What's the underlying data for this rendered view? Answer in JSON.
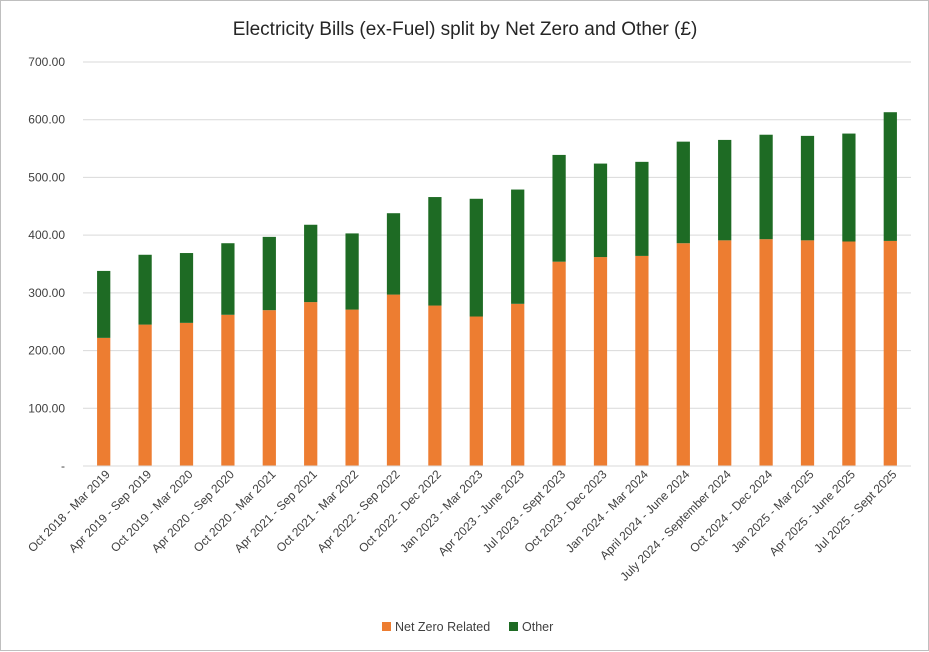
{
  "chart_data": {
    "type": "bar",
    "stacked": true,
    "title": "Electricity Bills (ex-Fuel) split by Net Zero and Other (£)",
    "xlabel": "",
    "ylabel": "",
    "ylim": [
      0,
      700
    ],
    "yticks": [
      0,
      100,
      200,
      300,
      400,
      500,
      600,
      700
    ],
    "ytick_labels": [
      "-",
      "100.00",
      "200.00",
      "300.00",
      "400.00",
      "500.00",
      "600.00",
      "700.00"
    ],
    "grid": true,
    "legend_position": "bottom",
    "categories": [
      "Oct 2018 - Mar 2019",
      "Apr 2019 - Sep 2019",
      "Oct 2019 - Mar 2020",
      "Apr 2020 - Sep 2020",
      "Oct 2020 - Mar 2021",
      "Apr 2021 - Sep 2021",
      "Oct 2021 - Mar 2022",
      "Apr 2022 - Sep 2022",
      "Oct 2022 - Dec 2022",
      "Jan 2023 - Mar 2023",
      "Apr 2023 - June 2023",
      "Jul 2023 - Sept 2023",
      "Oct 2023 - Dec 2023",
      "Jan 2024 - Mar 2024",
      "April 2024 - June 2024",
      "July 2024 - September 2024",
      "Oct 2024 - Dec 2024",
      "Jan 2025 - Mar 2025",
      "Apr 2025 - June 2025",
      "Jul 2025 - Sept 2025"
    ],
    "series": [
      {
        "name": "Net Zero Related",
        "color": "#ED7D31",
        "values": [
          222,
          245,
          248,
          262,
          270,
          284,
          271,
          297,
          278,
          259,
          281,
          354,
          362,
          364,
          386,
          391,
          393,
          391,
          389,
          390
        ]
      },
      {
        "name": "Other",
        "color": "#1E6B24",
        "values": [
          116,
          121,
          121,
          124,
          127,
          134,
          132,
          141,
          188,
          204,
          198,
          185,
          162,
          163,
          176,
          174,
          181,
          181,
          187,
          223
        ]
      }
    ]
  }
}
